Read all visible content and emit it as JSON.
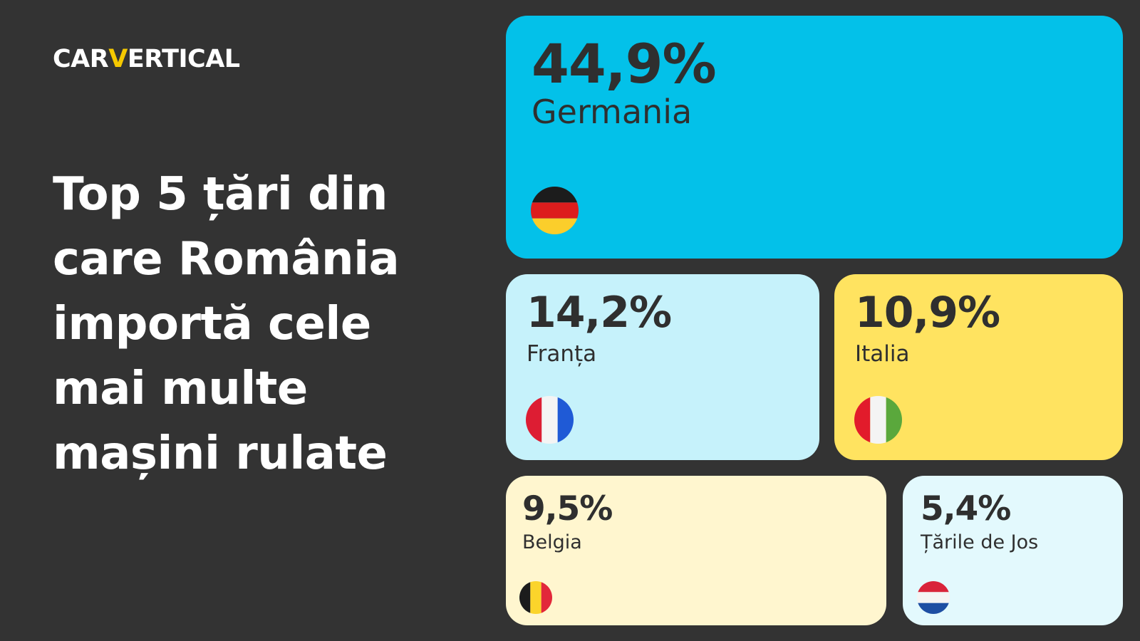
{
  "brand": {
    "logo_before": "CAR",
    "logo_accent": "V",
    "logo_after": "ERTICAL",
    "accent_color": "#f5c800"
  },
  "headline": {
    "lines": [
      "Top 5 țări din",
      "care România",
      "importă cele",
      "mai multe",
      "mașini rulate"
    ]
  },
  "chart_data": {
    "type": "treemap",
    "unit": "%",
    "items": [
      {
        "country": "Germania",
        "value": 44.9,
        "label": "44,9%",
        "color": "#03c1e9",
        "flag": "germany-flag-icon"
      },
      {
        "country": "Franța",
        "value": 14.2,
        "label": "14,2%",
        "color": "#c6f2fb",
        "flag": "france-flag-icon"
      },
      {
        "country": "Italia",
        "value": 10.9,
        "label": "10,9%",
        "color": "#ffe360",
        "flag": "italy-flag-icon"
      },
      {
        "country": "Belgia",
        "value": 9.5,
        "label": "9,5%",
        "color": "#fff6cf",
        "flag": "belgium-flag-icon"
      },
      {
        "country": "Țările de Jos",
        "value": 5.4,
        "label": "5,4%",
        "color": "#e3f9fd",
        "flag": "netherlands-flag-icon"
      }
    ]
  }
}
